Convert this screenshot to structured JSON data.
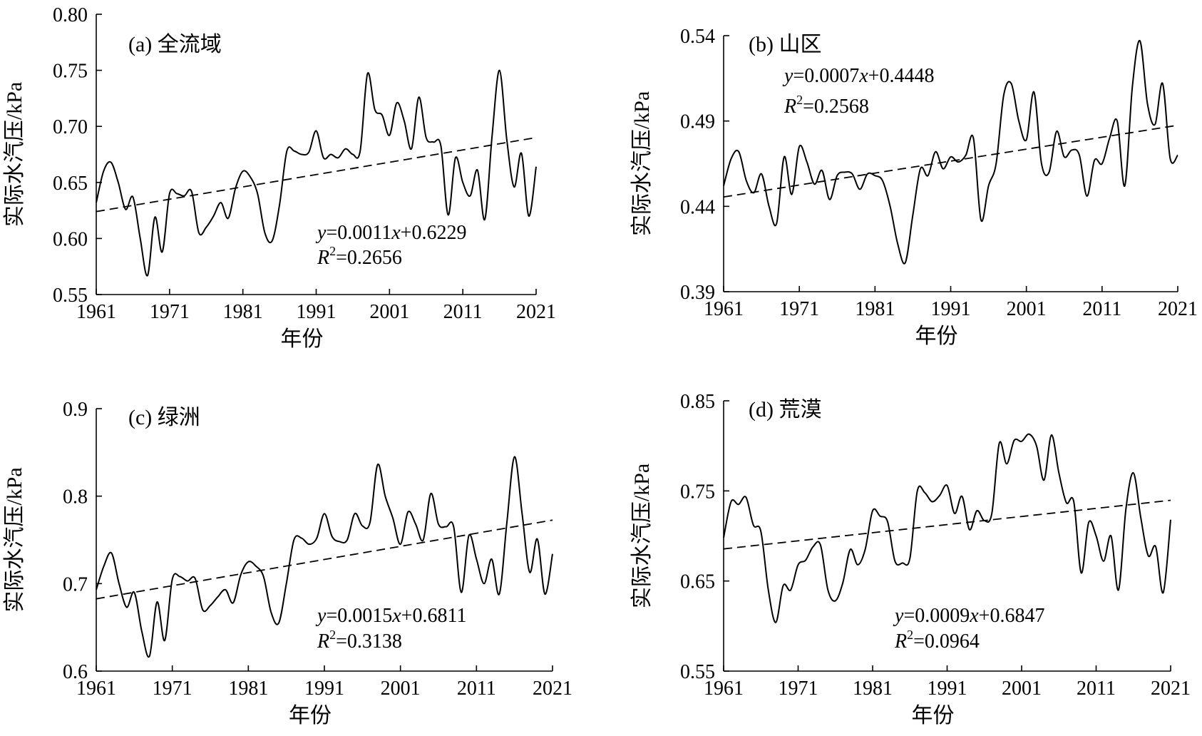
{
  "chart_data": [
    {
      "type": "line",
      "title": "(a) 全流域",
      "xlabel": "年份",
      "ylabel": "实际水汽压/kPa",
      "xlim": [
        1961,
        2021
      ],
      "ylim": [
        0.55,
        0.8
      ],
      "xticks": [
        1961,
        1971,
        1981,
        1991,
        2001,
        2011,
        2021
      ],
      "yticks": [
        "0.55",
        "0.60",
        "0.65",
        "0.70",
        "0.75",
        "0.80"
      ],
      "equation": "y=0.0011x+0.6229",
      "r2": "R2=0.2656",
      "trend": {
        "slope": 0.0011,
        "intercept": 0.6229
      },
      "x": [
        1961,
        1962,
        1963,
        1964,
        1965,
        1966,
        1967,
        1968,
        1969,
        1970,
        1971,
        1972,
        1973,
        1974,
        1975,
        1976,
        1977,
        1978,
        1979,
        1980,
        1981,
        1982,
        1983,
        1984,
        1985,
        1986,
        1987,
        1988,
        1989,
        1990,
        1991,
        1992,
        1993,
        1994,
        1995,
        1996,
        1997,
        1998,
        1999,
        2000,
        2001,
        2002,
        2003,
        2004,
        2005,
        2006,
        2007,
        2008,
        2009,
        2010,
        2011,
        2012,
        2013,
        2014,
        2015,
        2016,
        2017,
        2018,
        2019,
        2020,
        2021
      ],
      "series": [
        {
          "values": [
            0.632,
            0.66,
            0.668,
            0.65,
            0.626,
            0.637,
            0.6,
            0.567,
            0.619,
            0.588,
            0.64,
            0.64,
            0.638,
            0.642,
            0.605,
            0.61,
            0.62,
            0.632,
            0.618,
            0.645,
            0.66,
            0.655,
            0.64,
            0.605,
            0.598,
            0.63,
            0.678,
            0.678,
            0.675,
            0.677,
            0.696,
            0.672,
            0.675,
            0.672,
            0.68,
            0.675,
            0.678,
            0.747,
            0.715,
            0.71,
            0.692,
            0.721,
            0.705,
            0.68,
            0.726,
            0.69,
            0.686,
            0.683,
            0.621,
            0.672,
            0.65,
            0.638,
            0.661,
            0.617,
            0.692,
            0.75,
            0.688,
            0.646,
            0.676,
            0.62,
            0.664
          ]
        }
      ]
    },
    {
      "type": "line",
      "title": "(b) 山区",
      "xlabel": "年份",
      "ylabel": "实际水汽压/kPa",
      "xlim": [
        1961,
        2021
      ],
      "ylim": [
        0.39,
        0.54
      ],
      "xticks": [
        1961,
        1971,
        1981,
        1991,
        2001,
        2011,
        2021
      ],
      "yticks": [
        "0.39",
        "0.44",
        "0.49",
        "0.54"
      ],
      "equation": "y=0.0007x+0.4448",
      "r2": "R2=0.2568",
      "trend": {
        "slope": 0.0007,
        "intercept": 0.4448
      },
      "x": [
        1961,
        1962,
        1963,
        1964,
        1965,
        1966,
        1967,
        1968,
        1969,
        1970,
        1971,
        1972,
        1973,
        1974,
        1975,
        1976,
        1977,
        1978,
        1979,
        1980,
        1981,
        1982,
        1983,
        1984,
        1985,
        1986,
        1987,
        1988,
        1989,
        1990,
        1991,
        1992,
        1993,
        1994,
        1995,
        1996,
        1997,
        1998,
        1999,
        2000,
        2001,
        2002,
        2003,
        2004,
        2005,
        2006,
        2007,
        2008,
        2009,
        2010,
        2011,
        2012,
        2013,
        2014,
        2015,
        2016,
        2017,
        2018,
        2019,
        2020,
        2021
      ],
      "series": [
        {
          "values": [
            0.452,
            0.468,
            0.472,
            0.455,
            0.448,
            0.459,
            0.44,
            0.43,
            0.469,
            0.447,
            0.475,
            0.466,
            0.453,
            0.461,
            0.444,
            0.458,
            0.46,
            0.459,
            0.45,
            0.459,
            0.458,
            0.455,
            0.44,
            0.418,
            0.407,
            0.435,
            0.462,
            0.458,
            0.472,
            0.462,
            0.469,
            0.466,
            0.47,
            0.48,
            0.432,
            0.452,
            0.465,
            0.505,
            0.512,
            0.49,
            0.479,
            0.507,
            0.465,
            0.46,
            0.484,
            0.469,
            0.473,
            0.47,
            0.446,
            0.467,
            0.465,
            0.48,
            0.49,
            0.452,
            0.51,
            0.537,
            0.5,
            0.488,
            0.512,
            0.468,
            0.47
          ]
        }
      ]
    },
    {
      "type": "line",
      "title": "(c) 绿洲",
      "xlabel": "年份",
      "ylabel": "实际水汽压/kPa",
      "xlim": [
        1961,
        2021
      ],
      "ylim": [
        0.6,
        0.9
      ],
      "xticks": [
        1961,
        1971,
        1981,
        1991,
        2001,
        2011,
        2021
      ],
      "yticks": [
        "0.6",
        "0.7",
        "0.8",
        "0.9"
      ],
      "equation": "y=0.0015x+0.6811",
      "r2": "R2=0.3138",
      "trend": {
        "slope": 0.0015,
        "intercept": 0.6811
      },
      "x": [
        1961,
        1962,
        1963,
        1964,
        1965,
        1966,
        1967,
        1968,
        1969,
        1970,
        1971,
        1972,
        1973,
        1974,
        1975,
        1976,
        1977,
        1978,
        1979,
        1980,
        1981,
        1982,
        1983,
        1984,
        1985,
        1986,
        1987,
        1988,
        1989,
        1990,
        1991,
        1992,
        1993,
        1994,
        1995,
        1996,
        1997,
        1998,
        1999,
        2000,
        2001,
        2002,
        2003,
        2004,
        2005,
        2006,
        2007,
        2008,
        2009,
        2010,
        2011,
        2012,
        2013,
        2014,
        2015,
        2016,
        2017,
        2018,
        2019,
        2020,
        2021
      ],
      "series": [
        {
          "values": [
            0.693,
            0.72,
            0.735,
            0.7,
            0.673,
            0.69,
            0.645,
            0.617,
            0.679,
            0.635,
            0.705,
            0.708,
            0.703,
            0.706,
            0.67,
            0.675,
            0.685,
            0.693,
            0.678,
            0.71,
            0.725,
            0.72,
            0.708,
            0.667,
            0.655,
            0.7,
            0.75,
            0.752,
            0.745,
            0.752,
            0.78,
            0.754,
            0.748,
            0.75,
            0.78,
            0.766,
            0.77,
            0.836,
            0.8,
            0.775,
            0.745,
            0.782,
            0.768,
            0.75,
            0.803,
            0.768,
            0.765,
            0.765,
            0.69,
            0.755,
            0.728,
            0.7,
            0.728,
            0.688,
            0.77,
            0.845,
            0.78,
            0.713,
            0.751,
            0.688,
            0.734
          ]
        }
      ]
    },
    {
      "type": "line",
      "title": "(d) 荒漠",
      "xlabel": "年份",
      "ylabel": "实际水汽压/kPa",
      "xlim": [
        1961,
        2021
      ],
      "ylim": [
        0.55,
        0.85
      ],
      "xticks": [
        1961,
        1971,
        1981,
        1991,
        2001,
        2011,
        2021
      ],
      "yticks": [
        "0.55",
        "0.65",
        "0.75",
        "0.85"
      ],
      "equation": "y=0.0009x+0.6847",
      "r2": "R2=0.0964",
      "trend": {
        "slope": 0.0009,
        "intercept": 0.6847
      },
      "x": [
        1961,
        1962,
        1963,
        1964,
        1965,
        1966,
        1967,
        1968,
        1969,
        1970,
        1971,
        1972,
        1973,
        1974,
        1975,
        1976,
        1977,
        1978,
        1979,
        1980,
        1981,
        1982,
        1983,
        1984,
        1985,
        1986,
        1987,
        1988,
        1989,
        1990,
        1991,
        1992,
        1993,
        1994,
        1995,
        1996,
        1997,
        1998,
        1999,
        2000,
        2001,
        2002,
        2003,
        2004,
        2005,
        2006,
        2007,
        2008,
        2009,
        2010,
        2011,
        2012,
        2013,
        2014,
        2015,
        2016,
        2017,
        2018,
        2019,
        2020,
        2021
      ],
      "series": [
        {
          "values": [
            0.698,
            0.738,
            0.735,
            0.743,
            0.712,
            0.705,
            0.64,
            0.604,
            0.645,
            0.64,
            0.668,
            0.673,
            0.688,
            0.69,
            0.64,
            0.628,
            0.648,
            0.685,
            0.668,
            0.685,
            0.728,
            0.722,
            0.716,
            0.672,
            0.67,
            0.675,
            0.75,
            0.748,
            0.738,
            0.745,
            0.756,
            0.725,
            0.744,
            0.707,
            0.728,
            0.717,
            0.725,
            0.803,
            0.78,
            0.806,
            0.805,
            0.813,
            0.8,
            0.762,
            0.812,
            0.77,
            0.737,
            0.738,
            0.659,
            0.715,
            0.7,
            0.672,
            0.7,
            0.64,
            0.73,
            0.77,
            0.72,
            0.678,
            0.688,
            0.637,
            0.718
          ]
        }
      ]
    }
  ]
}
